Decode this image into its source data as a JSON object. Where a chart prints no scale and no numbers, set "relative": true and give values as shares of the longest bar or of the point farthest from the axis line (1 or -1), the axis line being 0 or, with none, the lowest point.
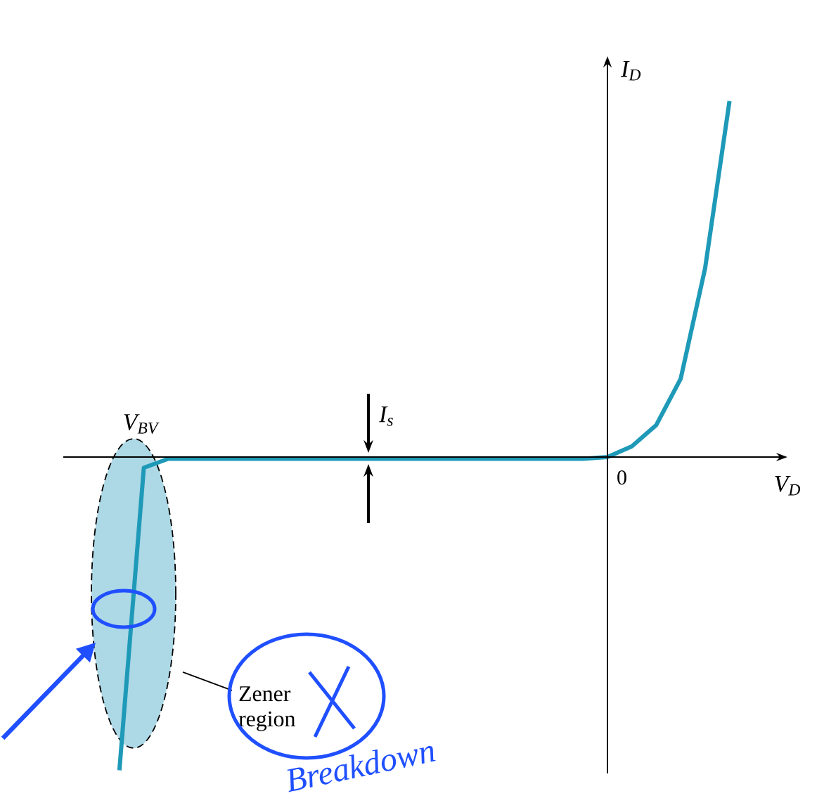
{
  "chart_data": {
    "type": "line",
    "relative": true,
    "xlabel": "V$_{D}$",
    "ylabel": "I$_{D}$",
    "categories": [
      null,
      null,
      null,
      null,
      null,
      null,
      null,
      null,
      null,
      null,
      null,
      null,
      null,
      null,
      null,
      null,
      null,
      null,
      null,
      null,
      null,
      null,
      null,
      null,
      null,
      null
    ],
    "values": [
      -0.88,
      -0.03,
      -0.005,
      -0.005,
      -0.005,
      -0.005,
      -0.005,
      -0.005,
      -0.005,
      -0.005,
      -0.005,
      -0.005,
      -0.005,
      -0.005,
      -0.005,
      -0.005,
      -0.005,
      -0.005,
      -0.005,
      -0.005,
      0,
      0.03,
      0.09,
      0.22,
      0.53,
      1.0
    ],
    "color": "#1e9ab8",
    "marker": "none",
    "line_style": "solid",
    "annotations": [
      "V$_{BV}$",
      "I$_{s}$",
      "Zener region",
      "0",
      "Breakdown"
    ]
  }
}
